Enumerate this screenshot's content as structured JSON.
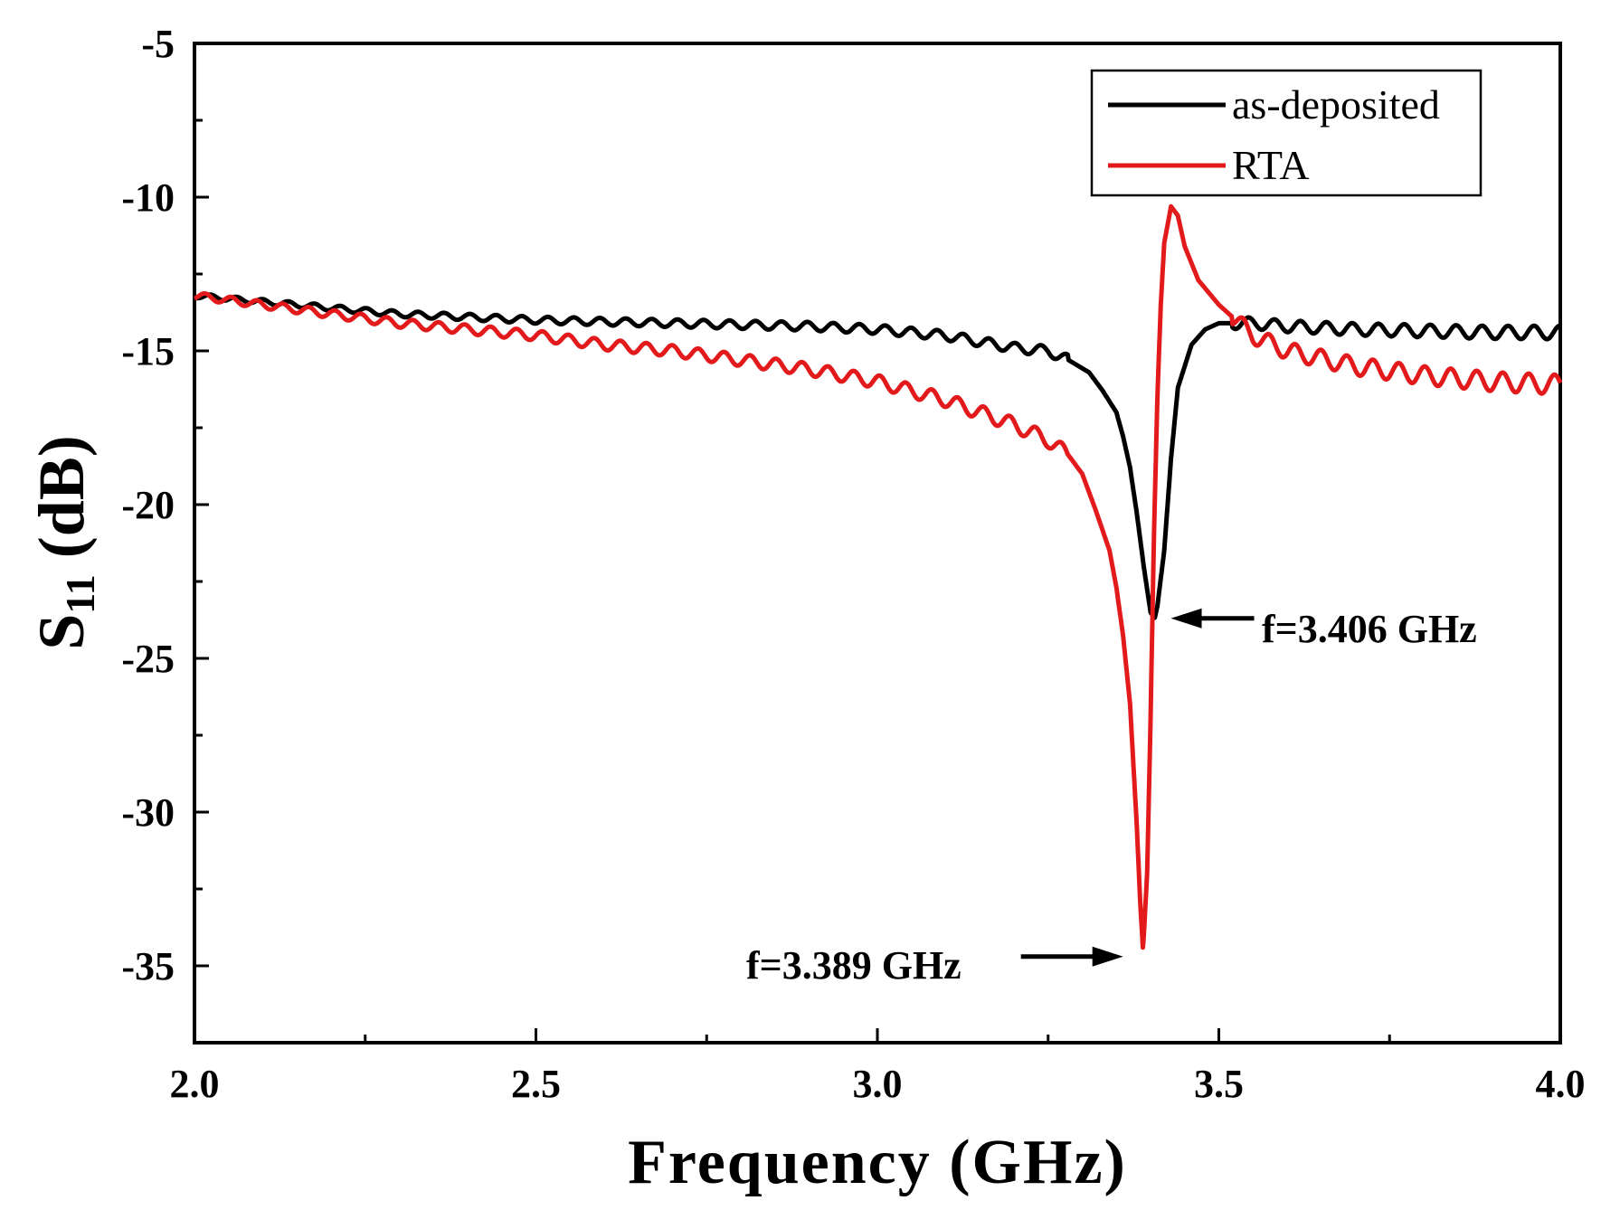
{
  "chart_data": {
    "type": "line",
    "title": "",
    "xlabel": "Frequency (GHz)",
    "ylabel": {
      "main": "S",
      "sub": "11",
      "unit": " (dB)"
    },
    "xlim": [
      2.0,
      4.0
    ],
    "ylim": [
      -37.5,
      -5
    ],
    "xticks": [
      2.0,
      2.5,
      3.0,
      3.5,
      4.0
    ],
    "xtick_labels": [
      "2.0",
      "2.5",
      "3.0",
      "3.5",
      "4.0"
    ],
    "yticks": [
      -5,
      -10,
      -15,
      -20,
      -25,
      -30,
      -35
    ],
    "ytick_labels": [
      "-5",
      "-10",
      "-15",
      "-20",
      "-25",
      "-30",
      "-35"
    ],
    "grid": false,
    "legend_position": "top-right",
    "series": [
      {
        "name": "as-deposited",
        "color": "#000000",
        "ripple": 0.22,
        "x": [
          2.0,
          2.1,
          2.2,
          2.3,
          2.4,
          2.5,
          2.6,
          2.7,
          2.8,
          2.9,
          3.0,
          3.1,
          3.15,
          3.2,
          3.25,
          3.28,
          3.31,
          3.33,
          3.35,
          3.36,
          3.37,
          3.38,
          3.39,
          3.4,
          3.406,
          3.41,
          3.42,
          3.43,
          3.44,
          3.46,
          3.48,
          3.5,
          3.55,
          3.6,
          3.7,
          3.8,
          3.9,
          4.0
        ],
        "y": [
          -13.2,
          -13.4,
          -13.6,
          -13.8,
          -13.9,
          -14.0,
          -14.05,
          -14.1,
          -14.15,
          -14.2,
          -14.3,
          -14.5,
          -14.7,
          -14.9,
          -15.0,
          -15.3,
          -15.7,
          -16.3,
          -17.0,
          -17.8,
          -18.8,
          -20.3,
          -22.0,
          -23.5,
          -23.7,
          -23.3,
          -21.5,
          -18.5,
          -16.2,
          -14.8,
          -14.3,
          -14.1,
          -14.1,
          -14.2,
          -14.3,
          -14.35,
          -14.4,
          -14.4
        ]
      },
      {
        "name": "RTA",
        "color": "#e31a1c",
        "ripple": 0.32,
        "x": [
          2.0,
          2.1,
          2.2,
          2.3,
          2.4,
          2.5,
          2.6,
          2.7,
          2.8,
          2.9,
          3.0,
          3.05,
          3.1,
          3.15,
          3.2,
          3.25,
          3.28,
          3.3,
          3.32,
          3.34,
          3.35,
          3.36,
          3.37,
          3.375,
          3.38,
          3.385,
          3.389,
          3.395,
          3.4,
          3.405,
          3.41,
          3.415,
          3.42,
          3.43,
          3.44,
          3.45,
          3.47,
          3.5,
          3.55,
          3.6,
          3.7,
          3.8,
          3.9,
          4.0
        ],
        "y": [
          -13.2,
          -13.5,
          -13.8,
          -14.1,
          -14.3,
          -14.5,
          -14.8,
          -15.0,
          -15.3,
          -15.6,
          -16.0,
          -16.3,
          -16.6,
          -17.0,
          -17.4,
          -17.9,
          -18.4,
          -19.0,
          -20.2,
          -21.5,
          -22.7,
          -24.3,
          -26.5,
          -28.5,
          -30.5,
          -33.0,
          -34.5,
          -32.0,
          -27.0,
          -21.0,
          -16.5,
          -13.5,
          -11.5,
          -10.3,
          -10.6,
          -11.6,
          -12.7,
          -13.5,
          -14.5,
          -15.0,
          -15.5,
          -15.8,
          -16.0,
          -16.1
        ]
      }
    ],
    "annotations": [
      {
        "text": "f=3.406 GHz",
        "arrow_to": [
          3.406,
          -23.7
        ],
        "arrow_dir": "left"
      },
      {
        "text": "f=3.389 GHz",
        "arrow_to": [
          3.389,
          -34.7
        ],
        "arrow_dir": "right"
      }
    ]
  }
}
